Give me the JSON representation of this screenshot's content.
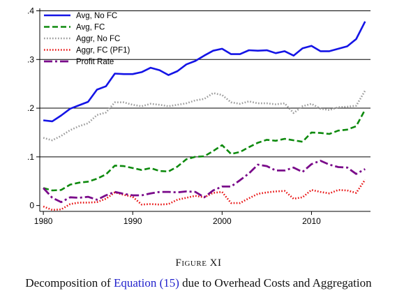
{
  "figure": {
    "label": "Figure XI",
    "title_before": "Decomposition of ",
    "title_link": "Equation (15)",
    "title_after": " due to Overhead Costs and Aggregation"
  },
  "chart_data": {
    "type": "line",
    "xlim": [
      1979.6,
      2016.6
    ],
    "ylim": [
      -0.012,
      0.405
    ],
    "x_ticks": [
      1980,
      1990,
      2000,
      2010
    ],
    "y_ticks": [
      0,
      0.1,
      0.2,
      0.3,
      0.4
    ],
    "y_tick_labels": [
      "0",
      ".1",
      ".2",
      ".3",
      ".4"
    ],
    "grid": "horizontal",
    "legend_position": "top-left",
    "x": [
      1980,
      1981,
      1982,
      1983,
      1984,
      1985,
      1986,
      1987,
      1988,
      1989,
      1990,
      1991,
      1992,
      1993,
      1994,
      1995,
      1996,
      1997,
      1998,
      1999,
      2000,
      2001,
      2002,
      2003,
      2004,
      2005,
      2006,
      2007,
      2008,
      2009,
      2010,
      2011,
      2012,
      2013,
      2014,
      2015,
      2016
    ],
    "series": [
      {
        "name": "Avg, No FC",
        "color": "#1414e6",
        "dash": "solid",
        "values": [
          0.175,
          0.173,
          0.185,
          0.199,
          0.206,
          0.213,
          0.238,
          0.245,
          0.271,
          0.27,
          0.27,
          0.274,
          0.283,
          0.278,
          0.268,
          0.276,
          0.29,
          0.297,
          0.308,
          0.318,
          0.322,
          0.311,
          0.311,
          0.319,
          0.318,
          0.319,
          0.313,
          0.317,
          0.308,
          0.323,
          0.328,
          0.317,
          0.317,
          0.322,
          0.327,
          0.342,
          0.378
        ]
      },
      {
        "name": "Avg, FC",
        "color": "#0e8a0e",
        "dash": "dashed",
        "values": [
          0.036,
          0.031,
          0.032,
          0.043,
          0.047,
          0.049,
          0.055,
          0.064,
          0.082,
          0.081,
          0.077,
          0.073,
          0.077,
          0.071,
          0.07,
          0.08,
          0.095,
          0.1,
          0.101,
          0.112,
          0.124,
          0.106,
          0.11,
          0.12,
          0.129,
          0.135,
          0.133,
          0.137,
          0.134,
          0.131,
          0.15,
          0.149,
          0.147,
          0.154,
          0.156,
          0.163,
          0.197
        ]
      },
      {
        "name": "Aggr, No FC",
        "color": "#9a9a9a",
        "dash": "dotted",
        "values": [
          0.139,
          0.134,
          0.143,
          0.155,
          0.163,
          0.169,
          0.186,
          0.191,
          0.212,
          0.212,
          0.207,
          0.204,
          0.209,
          0.207,
          0.204,
          0.207,
          0.21,
          0.216,
          0.219,
          0.231,
          0.227,
          0.212,
          0.209,
          0.214,
          0.21,
          0.21,
          0.208,
          0.21,
          0.19,
          0.204,
          0.209,
          0.199,
          0.196,
          0.202,
          0.203,
          0.205,
          0.236
        ]
      },
      {
        "name": "Aggr, FC (PF1)",
        "color": "#e81010",
        "dash": "dotted",
        "values": [
          -0.002,
          -0.009,
          -0.008,
          0.003,
          0.006,
          0.006,
          0.007,
          0.014,
          0.027,
          0.022,
          0.018,
          0.002,
          0.003,
          0.002,
          0.003,
          0.012,
          0.016,
          0.02,
          0.017,
          0.026,
          0.028,
          0.005,
          0.005,
          0.015,
          0.024,
          0.027,
          0.029,
          0.03,
          0.014,
          0.017,
          0.032,
          0.028,
          0.025,
          0.032,
          0.031,
          0.026,
          0.053
        ]
      },
      {
        "name": "Profit Rate",
        "color": "#7a0a8a",
        "dash": "dashdot",
        "values": [
          0.036,
          0.016,
          0.007,
          0.017,
          0.016,
          0.018,
          0.012,
          0.021,
          0.028,
          0.024,
          0.021,
          0.021,
          0.025,
          0.028,
          0.028,
          0.027,
          0.029,
          0.028,
          0.017,
          0.031,
          0.039,
          0.039,
          0.052,
          0.066,
          0.084,
          0.081,
          0.072,
          0.072,
          0.078,
          0.069,
          0.085,
          0.092,
          0.084,
          0.079,
          0.078,
          0.065,
          0.075
        ]
      }
    ]
  }
}
